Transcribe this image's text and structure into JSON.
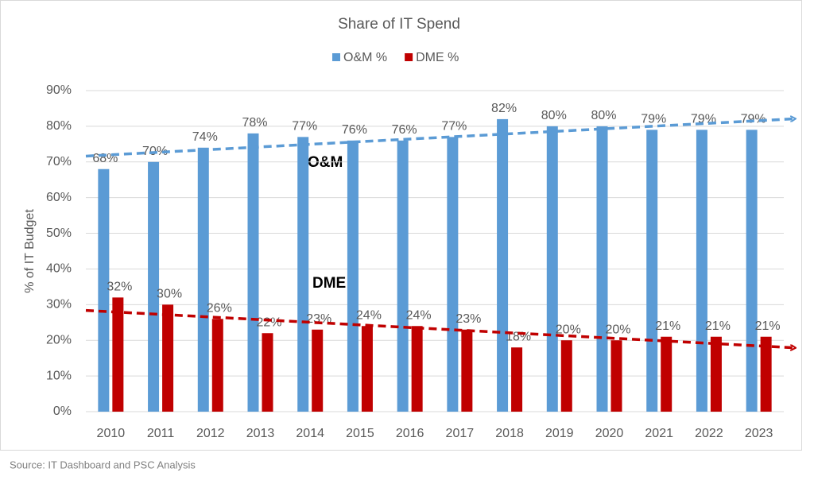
{
  "chart_data": {
    "type": "bar",
    "title": "Share of IT Spend",
    "y_label": "% of IT Budget",
    "source": "Source: IT Dashboard and PSC Analysis",
    "annotations": [
      "O&M",
      "DME"
    ],
    "categories": [
      "2010",
      "2011",
      "2012",
      "2013",
      "2014",
      "2015",
      "2016",
      "2017",
      "2018",
      "2019",
      "2020",
      "2021",
      "2022",
      "2023"
    ],
    "series": [
      {
        "name": "O&M %",
        "color": "#5b9bd5",
        "trend": true,
        "values": [
          68,
          70,
          74,
          78,
          77,
          76,
          76,
          77,
          82,
          80,
          80,
          79,
          79,
          79
        ],
        "value_labels": [
          "68%",
          "70%",
          "74%",
          "78%",
          "77%",
          "76%",
          "76%",
          "77%",
          "82%",
          "80%",
          "80%",
          "79%",
          "79%",
          "79%"
        ]
      },
      {
        "name": "DME %",
        "color": "#c00000",
        "trend": true,
        "values": [
          32,
          30,
          26,
          22,
          23,
          24,
          24,
          23,
          18,
          20,
          20,
          21,
          21,
          21
        ],
        "value_labels": [
          "32%",
          "30%",
          "26%",
          "22%",
          "23%",
          "24%",
          "24%",
          "23%",
          "18%",
          "20%",
          "20%",
          "21%",
          "21%",
          "21%"
        ]
      }
    ],
    "ylim": [
      0,
      90
    ],
    "yticks": [
      {
        "value": 0,
        "label": "0%"
      },
      {
        "value": 10,
        "label": "10%"
      },
      {
        "value": 20,
        "label": "20%"
      },
      {
        "value": 30,
        "label": "30%"
      },
      {
        "value": 40,
        "label": "40%"
      },
      {
        "value": 50,
        "label": "50%"
      },
      {
        "value": 60,
        "label": "60%"
      },
      {
        "value": 70,
        "label": "70%"
      },
      {
        "value": 80,
        "label": "80%"
      },
      {
        "value": 90,
        "label": "90%"
      }
    ],
    "grid": true,
    "legend": "top"
  }
}
